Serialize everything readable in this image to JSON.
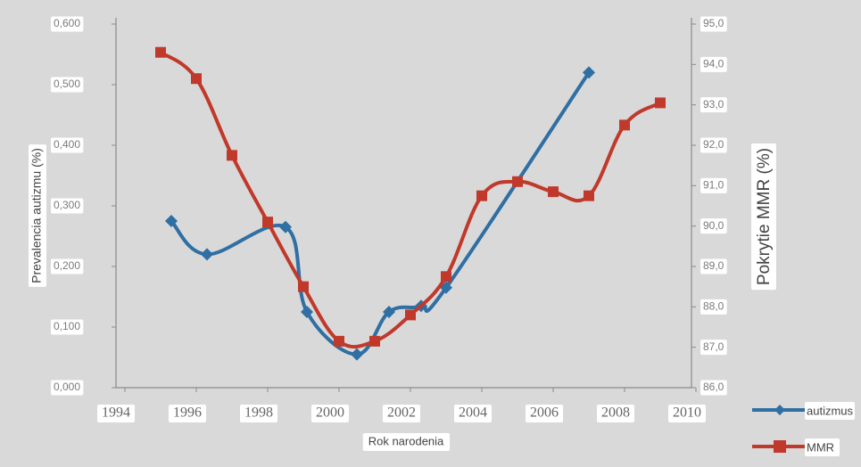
{
  "chart_data": {
    "type": "line",
    "xlabel": "Rok narodenia",
    "ylabel_left": "Prevalencia autizmu (%)",
    "ylabel_right": "Pokrytie MMR (%)",
    "x_ticks": [
      "1994",
      "1996",
      "1998",
      "2000",
      "2002",
      "2004",
      "2006",
      "2008",
      "2010"
    ],
    "xlim": [
      1994,
      2010
    ],
    "y_left_ticks": [
      "0,000",
      "0,100",
      "0,200",
      "0,300",
      "0,400",
      "0,500",
      "0,600"
    ],
    "y_left_lim": [
      0,
      0.6
    ],
    "y_right_ticks": [
      "86,0",
      "87,0",
      "88,0",
      "89,0",
      "90,0",
      "91,0",
      "92,0",
      "93,0",
      "94,0",
      "95,0"
    ],
    "y_right_lim": [
      86,
      95
    ],
    "grid": false,
    "legend_position": "right",
    "series": [
      {
        "name": "autizmus",
        "axis": "left",
        "color": "#2f6fa3",
        "marker": "diamond",
        "x": [
          1995.3,
          1996.3,
          1998.5,
          1999.1,
          2000.5,
          2001.4,
          2002.3,
          2003.0,
          2007.0
        ],
        "y": [
          0.275,
          0.22,
          0.265,
          0.125,
          0.055,
          0.125,
          0.135,
          0.165,
          0.52
        ]
      },
      {
        "name": "MMR",
        "axis": "right",
        "color": "#c0392b",
        "marker": "square",
        "x": [
          1995.0,
          1996.0,
          1997.0,
          1998.0,
          1999.0,
          2000.0,
          2001.0,
          2002.0,
          2003.0,
          2004.0,
          2005.0,
          2006.0,
          2007.0,
          2008.0,
          2009.0
        ],
        "y": [
          94.3,
          93.65,
          91.75,
          90.1,
          88.5,
          87.15,
          87.15,
          87.8,
          88.75,
          90.75,
          91.1,
          90.85,
          90.75,
          92.5,
          93.05
        ]
      }
    ]
  }
}
